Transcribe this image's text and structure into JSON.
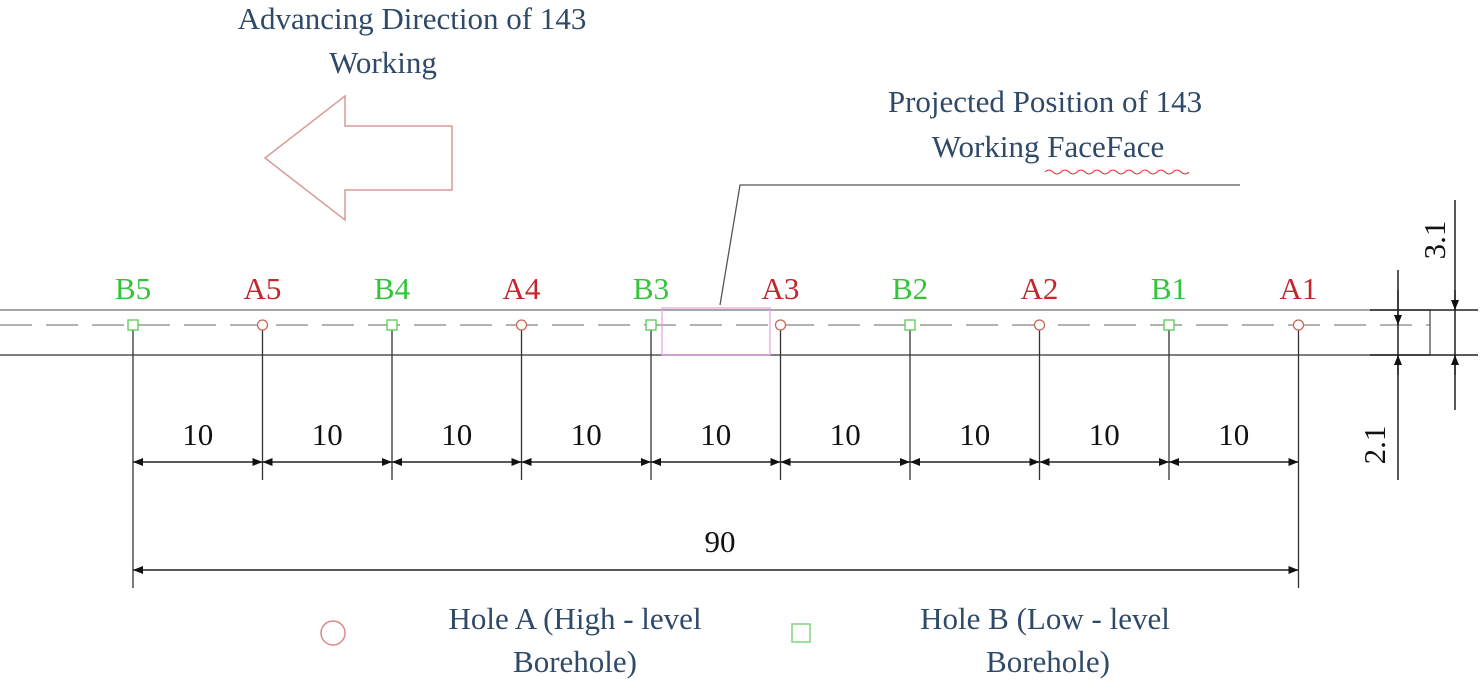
{
  "title": {
    "lines": [
      "Advancing Direction of 143",
      "Working"
    ]
  },
  "annotation": {
    "lines": [
      "Projected Position of 143",
      "Working FaceFace"
    ]
  },
  "holes": [
    "B5",
    "A5",
    "B4",
    "A4",
    "B3",
    "A3",
    "B2",
    "A2",
    "B1",
    "A1"
  ],
  "spacings": [
    "10",
    "10",
    "10",
    "10",
    "10",
    "10",
    "10",
    "10",
    "10"
  ],
  "total": "90",
  "dims": {
    "top": "3.1",
    "bottom": "2.1"
  },
  "legend": [
    {
      "lines": [
        "Hole A (High - level",
        "Borehole)"
      ]
    },
    {
      "lines": [
        "Hole B (Low - level",
        "Borehole)"
      ]
    }
  ]
}
